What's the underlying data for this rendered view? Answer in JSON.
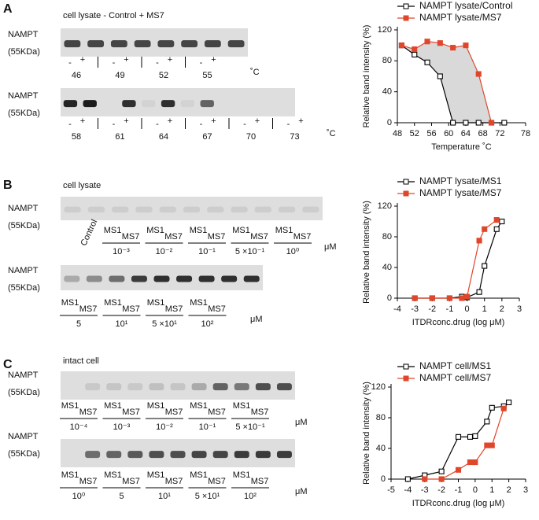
{
  "figure": {
    "panel_labels": [
      "A",
      "B",
      "C"
    ],
    "protein": "NAMPT",
    "size": "(55KDa)",
    "minus": "-",
    "plus": "+",
    "ms1": "MS1",
    "ms7": "MS7",
    "um": "μM",
    "deg": "˚C",
    "blot_a": {
      "title": "cell lysate - Control + MS7",
      "row1": [
        "46",
        "49",
        "52",
        "55"
      ],
      "row2": [
        "58",
        "61",
        "64",
        "67",
        "70",
        "73"
      ]
    },
    "blot_b": {
      "title": "cell lysate",
      "control": "Control",
      "row1": [
        "10⁻³",
        "10⁻²",
        "10⁻¹",
        "5 ×10⁻¹",
        "10⁰"
      ],
      "row2": [
        "5",
        "10¹",
        "5 ×10¹",
        "10²"
      ]
    },
    "blot_c": {
      "title": "intact cell",
      "row1": [
        "10⁻⁴",
        "10⁻³",
        "10⁻²",
        "10⁻¹",
        "5 ×10⁻¹"
      ],
      "row2": [
        "10⁰",
        "5",
        "10¹",
        "5 ×10¹",
        "10²"
      ]
    }
  },
  "chart_data": [
    {
      "type": "line",
      "xlabel": "Temperature ˚C",
      "ylabel": "Relative band intensity (%)",
      "x": [
        49,
        52,
        55,
        58,
        61,
        64,
        67,
        70,
        73
      ],
      "series": [
        {
          "name": "NAMPT lysate/Control",
          "color": "#000000",
          "marker": "open",
          "values": [
            100,
            88,
            78,
            60,
            0,
            0,
            0,
            0,
            0
          ]
        },
        {
          "name": "NAMPT lysate/MS7",
          "color": "#e0462b",
          "marker": "filled",
          "values": [
            100,
            95,
            105,
            103,
            97,
            100,
            63,
            0,
            null
          ]
        }
      ],
      "fill_between_color": "#d9d9d9",
      "xlim": [
        48,
        78
      ],
      "xticks": [
        48,
        52,
        56,
        60,
        64,
        68,
        72,
        78
      ],
      "ylim": [
        0,
        120
      ],
      "yticks": [
        0,
        40,
        80,
        120
      ]
    },
    {
      "type": "line",
      "xlabel": "ITDRconc.drug (log μM)",
      "ylabel": "Relative band intensity (%)",
      "x": [
        -3,
        -2,
        -1,
        -0.3,
        0,
        0.7,
        1,
        1.7,
        2
      ],
      "series": [
        {
          "name": "NAMPT lysate/MS1",
          "color": "#000000",
          "marker": "open",
          "values": [
            0,
            0,
            0,
            2,
            1,
            8,
            42,
            90,
            100
          ]
        },
        {
          "name": "NAMPT lysate/MS7",
          "color": "#e0462b",
          "marker": "filled",
          "values": [
            0,
            0,
            0,
            0,
            2,
            75,
            90,
            102,
            null
          ]
        }
      ],
      "xlim": [
        -4,
        3
      ],
      "xticks": [
        -4,
        -3,
        -2,
        -1,
        0,
        1,
        2,
        3
      ],
      "ylim": [
        0,
        120
      ],
      "yticks": [
        0,
        40,
        80,
        120
      ]
    },
    {
      "type": "line",
      "xlabel": "ITDRconc.drug (log μM)",
      "ylabel": "Relative band intensity (%)",
      "x": [
        -4,
        -3,
        -2,
        -1,
        -0.3,
        0,
        0.7,
        1,
        1.7,
        2
      ],
      "series": [
        {
          "name": "NAMPT cell/MS1",
          "color": "#000000",
          "marker": "open",
          "values": [
            0,
            5,
            10,
            55,
            55,
            56,
            75,
            93,
            95,
            100
          ]
        },
        {
          "name": "NAMPT cell/MS7",
          "color": "#e0462b",
          "marker": "filled",
          "values": [
            null,
            0,
            0,
            12,
            22,
            22,
            44,
            44,
            92,
            null
          ]
        }
      ],
      "xlim": [
        -5,
        3
      ],
      "xticks": [
        -5,
        -4,
        -3,
        -2,
        -1,
        0,
        1,
        2,
        3
      ],
      "ylim": [
        0,
        120
      ],
      "yticks": [
        0,
        40,
        80,
        120
      ]
    }
  ]
}
